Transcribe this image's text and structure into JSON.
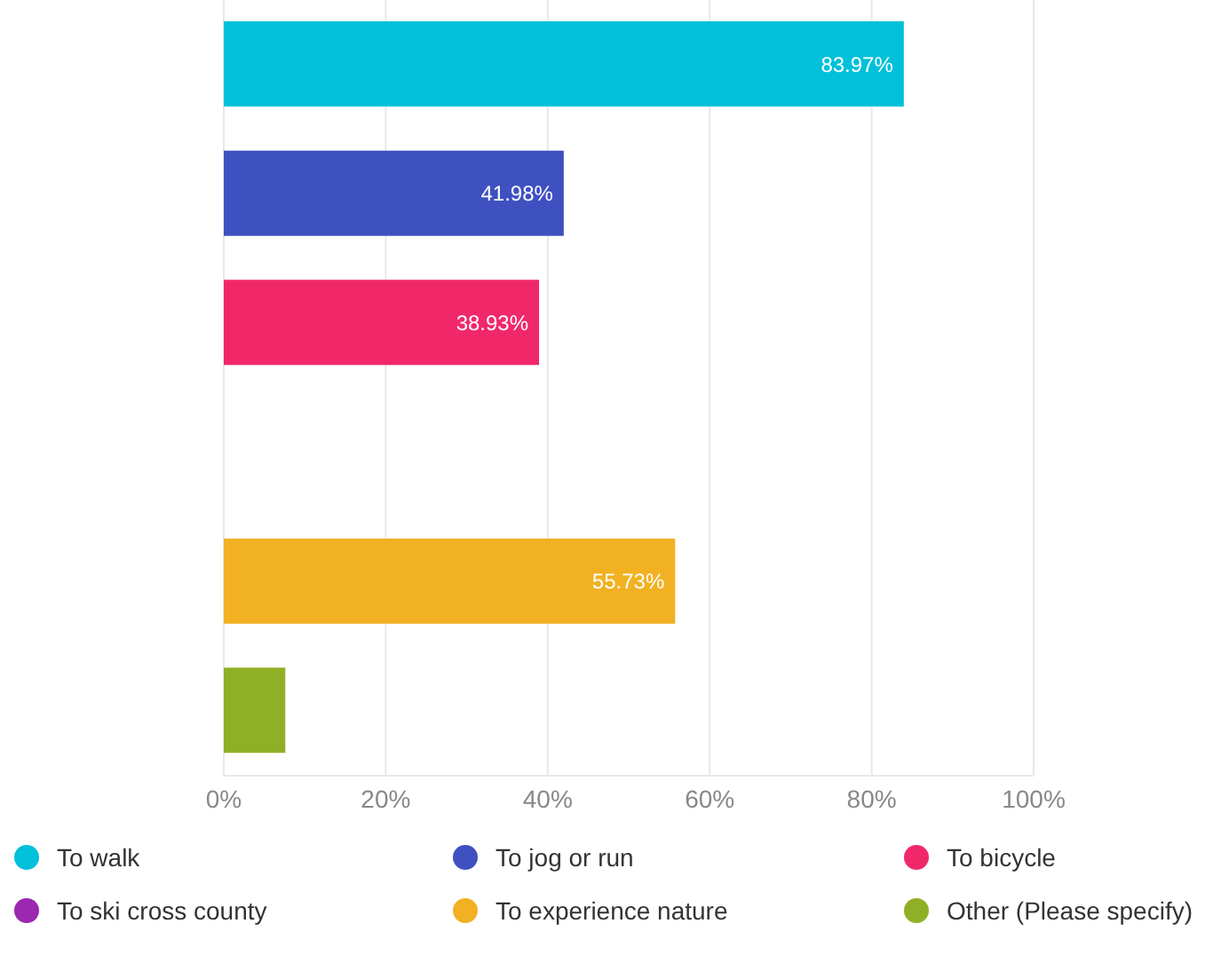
{
  "chart_data": {
    "type": "bar",
    "orientation": "horizontal",
    "stacked": true,
    "categories": [
      null,
      null,
      null,
      null,
      null,
      null
    ],
    "series": [
      {
        "name": "To walk",
        "color": "#00c0da",
        "values": [
          83.97,
          null,
          null,
          null,
          null,
          null
        ],
        "value_labels": [
          "83.97%",
          null,
          null,
          null,
          null,
          null
        ]
      },
      {
        "name": "To jog or run",
        "color": "#3f51c0",
        "values": [
          null,
          41.98,
          null,
          null,
          null,
          null
        ],
        "value_labels": [
          null,
          "41.98%",
          null,
          null,
          null,
          null
        ]
      },
      {
        "name": "To bicycle",
        "color": "#f0286a",
        "values": [
          null,
          null,
          38.93,
          null,
          null,
          null
        ],
        "value_labels": [
          null,
          null,
          "38.93%",
          null,
          null,
          null
        ]
      },
      {
        "name": "To ski cross county",
        "color": "#9c27b0",
        "values": [
          null,
          null,
          null,
          0,
          null,
          null
        ],
        "value_labels": [
          null,
          null,
          null,
          null,
          null,
          null
        ]
      },
      {
        "name": "To experience nature",
        "color": "#f1b122",
        "values": [
          null,
          null,
          null,
          null,
          55.73,
          null
        ],
        "value_labels": [
          null,
          null,
          null,
          null,
          "55.73%",
          null
        ]
      },
      {
        "name": "Other (Please specify)",
        "color": "#8fb026",
        "values": [
          null,
          null,
          null,
          null,
          null,
          7.6
        ],
        "value_labels": [
          null,
          null,
          null,
          null,
          null,
          null
        ]
      }
    ],
    "xlim": [
      0,
      100
    ],
    "xticks": [
      {
        "value": 0,
        "label": "0%"
      },
      {
        "value": 20,
        "label": "20%"
      },
      {
        "value": 40,
        "label": "40%"
      },
      {
        "value": 60,
        "label": "60%"
      },
      {
        "value": 80,
        "label": "80%"
      },
      {
        "value": 100,
        "label": "100%"
      }
    ],
    "grid": "x",
    "tick_labels": "x",
    "legend": "bottom"
  }
}
